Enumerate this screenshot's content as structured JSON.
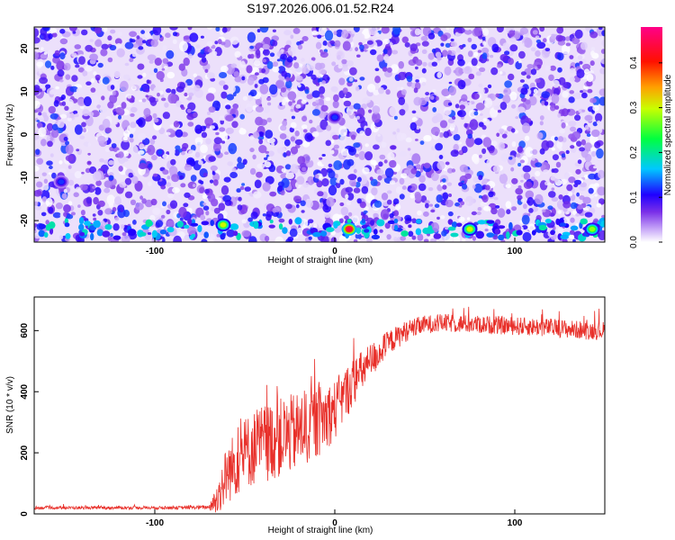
{
  "title": "S197.2026.006.01.52.R24",
  "chart_data": [
    {
      "type": "heatmap",
      "title": "S197.2026.006.01.52.R24",
      "xlabel": "Height of straight line (km)",
      "ylabel": "Frequency (Hz)",
      "xlim": [
        -167,
        150
      ],
      "ylim": [
        -25,
        25
      ],
      "xticks": [
        -100,
        0,
        100
      ],
      "yticks": [
        -20,
        -10,
        0,
        10,
        20
      ],
      "colorbar": {
        "label": "Normalized spectral amplitude",
        "range": [
          0.0,
          0.48
        ],
        "ticks": [
          0.0,
          0.1,
          0.2,
          0.3,
          0.4
        ],
        "tick_labels": [
          "0.0",
          "0.1",
          "0.2",
          "0.3",
          "0.4"
        ],
        "colormap": [
          "#ffffff",
          "#a070f0",
          "#5a10e0",
          "#2000ff",
          "#00d0ff",
          "#00ff40",
          "#f0ff00",
          "#ff8000",
          "#ff0000",
          "#ff0090"
        ]
      },
      "hotspots": [
        {
          "x": -62,
          "y": -21,
          "value": 0.3
        },
        {
          "x": 8,
          "y": -22,
          "value": 0.45
        },
        {
          "x": 75,
          "y": -22,
          "value": 0.3
        },
        {
          "x": 143,
          "y": -22,
          "value": 0.28
        },
        {
          "x": 0,
          "y": 4,
          "value": 0.12
        },
        {
          "x": -152,
          "y": -11,
          "value": 0.12
        }
      ]
    },
    {
      "type": "line",
      "xlabel": "Height of straight line (km)",
      "ylabel": "SNR (10 * v/v)",
      "xlim": [
        -167,
        150
      ],
      "ylim": [
        0,
        710
      ],
      "xticks": [
        -100,
        0,
        100
      ],
      "yticks": [
        0,
        200,
        400,
        600
      ],
      "color": "#e8302a",
      "series": [
        {
          "x": [
            -167,
            -150,
            -120,
            -90,
            -70,
            -66,
            -60,
            -50,
            -40,
            -30,
            -20,
            -10,
            0,
            10,
            20,
            30,
            40,
            50,
            60,
            80,
            100,
            120,
            140,
            150
          ],
          "y": [
            20,
            20,
            20,
            20,
            22,
            40,
            130,
            200,
            230,
            250,
            270,
            300,
            340,
            430,
            500,
            560,
            600,
            620,
            625,
            620,
            615,
            610,
            600,
            600
          ],
          "noise": [
            5,
            5,
            5,
            5,
            6,
            50,
            100,
            120,
            130,
            130,
            130,
            120,
            100,
            80,
            60,
            40,
            35,
            30,
            30,
            30,
            30,
            30,
            30,
            30
          ]
        }
      ]
    }
  ]
}
